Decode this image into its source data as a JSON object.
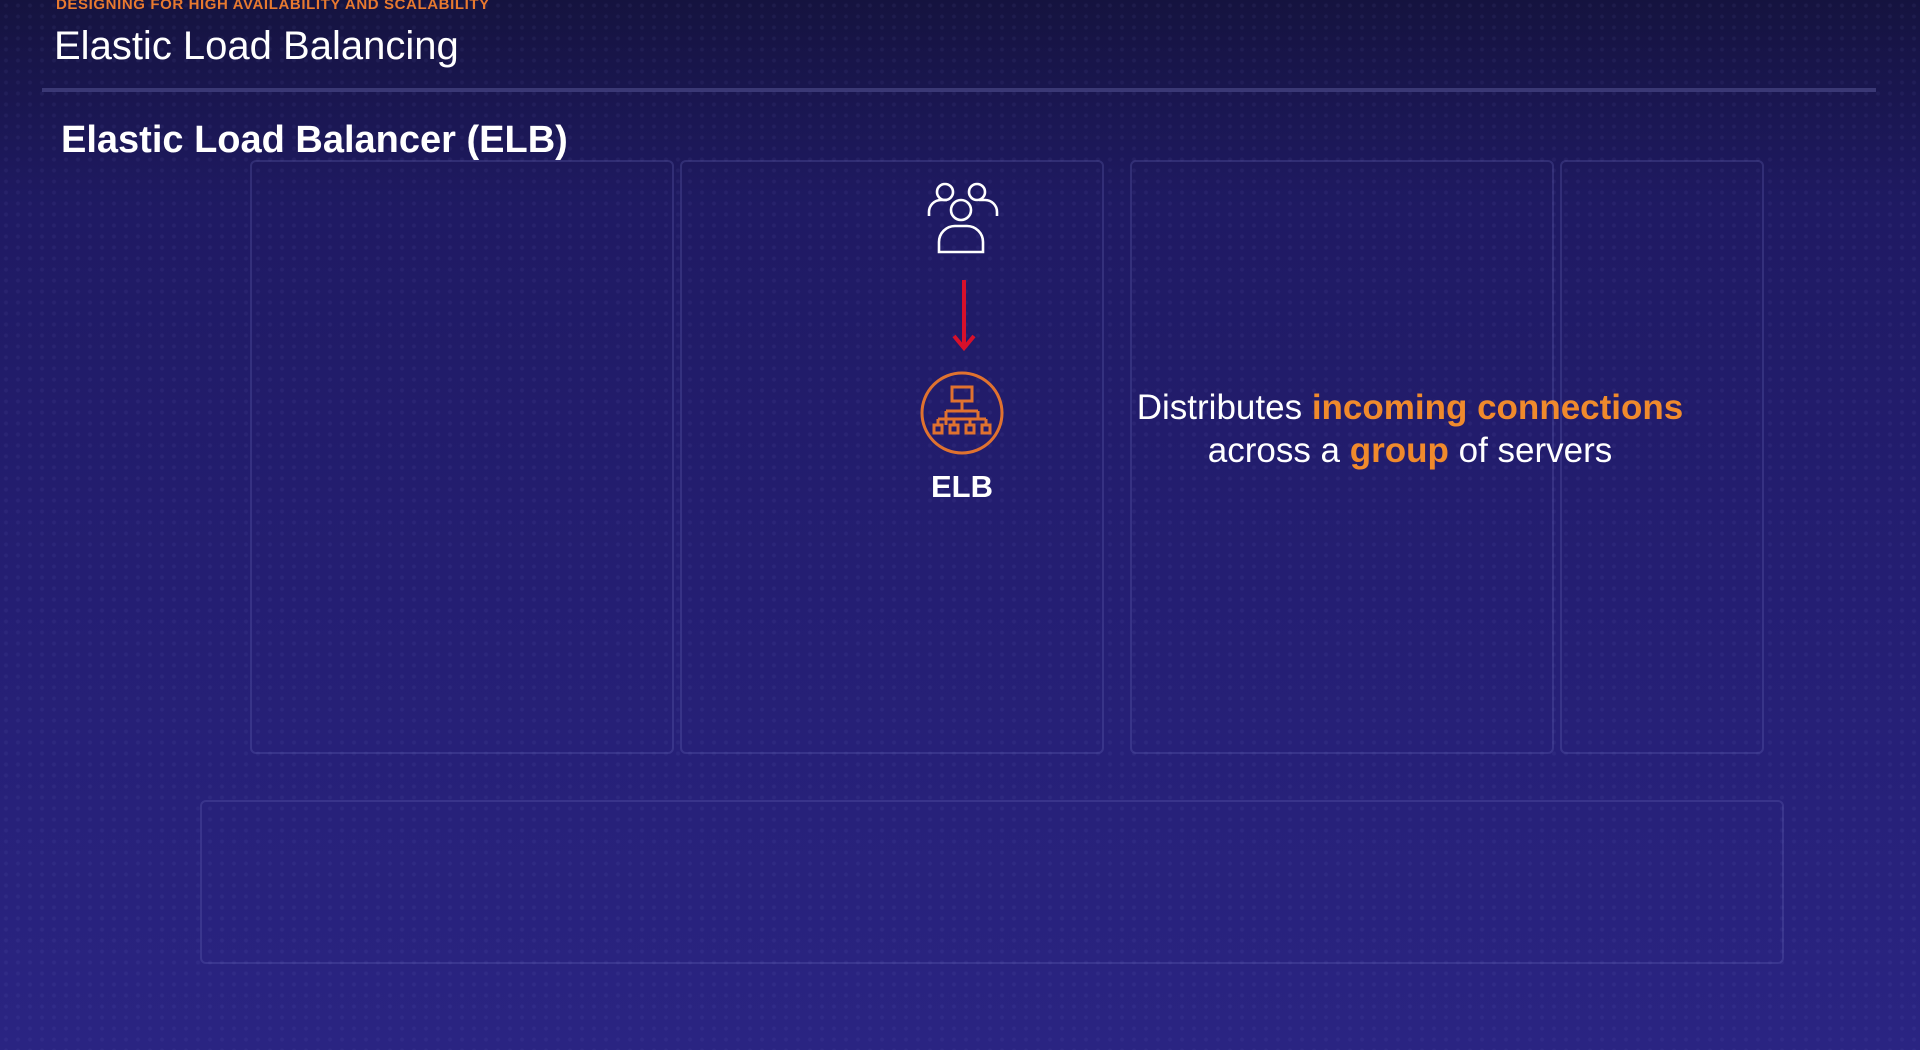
{
  "header": {
    "kicker": "DESIGNING FOR HIGH AVAILABILITY AND SCALABILITY",
    "title": "Elastic Load Balancing"
  },
  "slide": {
    "heading": "Elastic Load Balancer (ELB)",
    "diagram": {
      "users_icon": "users-group-icon",
      "arrow_icon": "arrow-down-icon",
      "elb_icon": "load-balancer-icon",
      "elb_label": "ELB"
    },
    "description": {
      "line1_a": "Distributes ",
      "line1_hl": "incoming connections",
      "line2_a": "across a ",
      "line2_hl": "group",
      "line2_b": " of servers"
    }
  },
  "colors": {
    "accent_orange": "#f08a2c",
    "arrow_red": "#d8102a",
    "background": "#221d6e"
  }
}
